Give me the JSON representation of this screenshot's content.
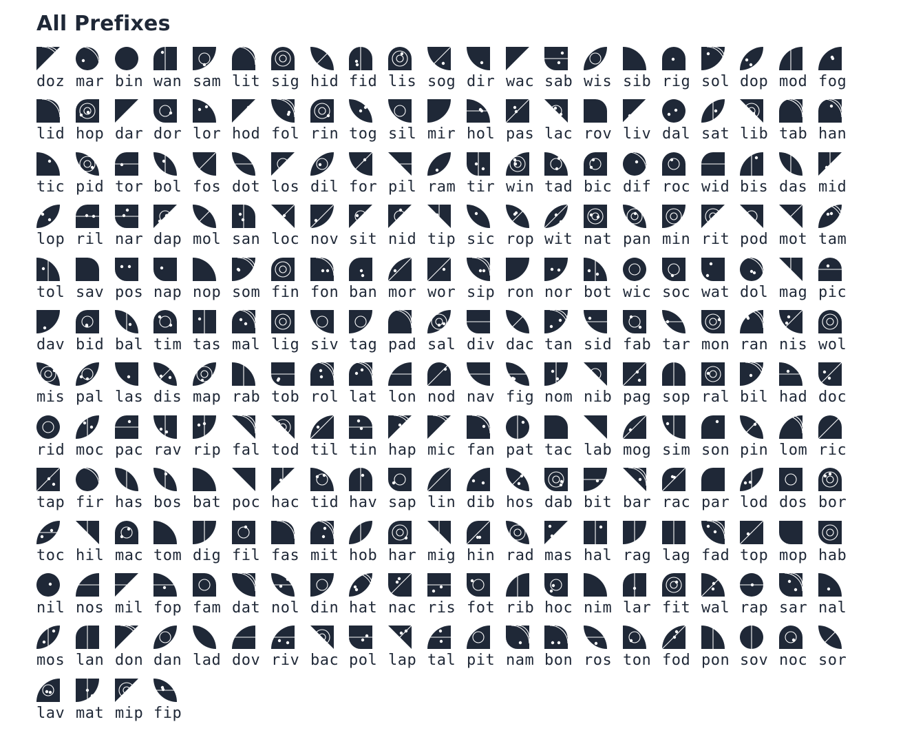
{
  "page_title": "All Prefixes",
  "colors": {
    "ink": "#1f2837",
    "background": "#ffffff"
  },
  "prefixes": [
    "doz",
    "mar",
    "bin",
    "wan",
    "sam",
    "lit",
    "sig",
    "hid",
    "fid",
    "lis",
    "sog",
    "dir",
    "wac",
    "sab",
    "wis",
    "sib",
    "rig",
    "sol",
    "dop",
    "mod",
    "fog",
    "lid",
    "hop",
    "dar",
    "dor",
    "lor",
    "hod",
    "fol",
    "rin",
    "tog",
    "sil",
    "mir",
    "hol",
    "pas",
    "lac",
    "rov",
    "liv",
    "dal",
    "sat",
    "lib",
    "tab",
    "han",
    "tic",
    "pid",
    "tor",
    "bol",
    "fos",
    "dot",
    "los",
    "dil",
    "for",
    "pil",
    "ram",
    "tir",
    "win",
    "tad",
    "bic",
    "dif",
    "roc",
    "wid",
    "bis",
    "das",
    "mid",
    "lop",
    "ril",
    "nar",
    "dap",
    "mol",
    "san",
    "loc",
    "nov",
    "sit",
    "nid",
    "tip",
    "sic",
    "rop",
    "wit",
    "nat",
    "pan",
    "min",
    "rit",
    "pod",
    "mot",
    "tam",
    "tol",
    "sav",
    "pos",
    "nap",
    "nop",
    "som",
    "fin",
    "fon",
    "ban",
    "mor",
    "wor",
    "sip",
    "ron",
    "nor",
    "bot",
    "wic",
    "soc",
    "wat",
    "dol",
    "mag",
    "pic",
    "dav",
    "bid",
    "bal",
    "tim",
    "tas",
    "mal",
    "lig",
    "siv",
    "tag",
    "pad",
    "sal",
    "div",
    "dac",
    "tan",
    "sid",
    "fab",
    "tar",
    "mon",
    "ran",
    "nis",
    "wol",
    "mis",
    "pal",
    "las",
    "dis",
    "map",
    "rab",
    "tob",
    "rol",
    "lat",
    "lon",
    "nod",
    "nav",
    "fig",
    "nom",
    "nib",
    "pag",
    "sop",
    "ral",
    "bil",
    "had",
    "doc",
    "rid",
    "moc",
    "pac",
    "rav",
    "rip",
    "fal",
    "tod",
    "til",
    "tin",
    "hap",
    "mic",
    "fan",
    "pat",
    "tac",
    "lab",
    "mog",
    "sim",
    "son",
    "pin",
    "lom",
    "ric",
    "tap",
    "fir",
    "has",
    "bos",
    "bat",
    "poc",
    "hac",
    "tid",
    "hav",
    "sap",
    "lin",
    "dib",
    "hos",
    "dab",
    "bit",
    "bar",
    "rac",
    "par",
    "lod",
    "dos",
    "bor",
    "toc",
    "hil",
    "mac",
    "tom",
    "dig",
    "fil",
    "fas",
    "mit",
    "hob",
    "har",
    "mig",
    "hin",
    "rad",
    "mas",
    "hal",
    "rag",
    "lag",
    "fad",
    "top",
    "mop",
    "hab",
    "nil",
    "nos",
    "mil",
    "fop",
    "fam",
    "dat",
    "nol",
    "din",
    "hat",
    "nac",
    "ris",
    "fot",
    "rib",
    "hoc",
    "nim",
    "lar",
    "fit",
    "wal",
    "rap",
    "sar",
    "nal",
    "mos",
    "lan",
    "don",
    "dan",
    "lad",
    "dov",
    "riv",
    "bac",
    "pol",
    "lap",
    "tal",
    "pit",
    "nam",
    "bon",
    "ros",
    "ton",
    "fod",
    "pon",
    "sov",
    "noc",
    "sor",
    "lav",
    "mat",
    "mip",
    "fip"
  ]
}
